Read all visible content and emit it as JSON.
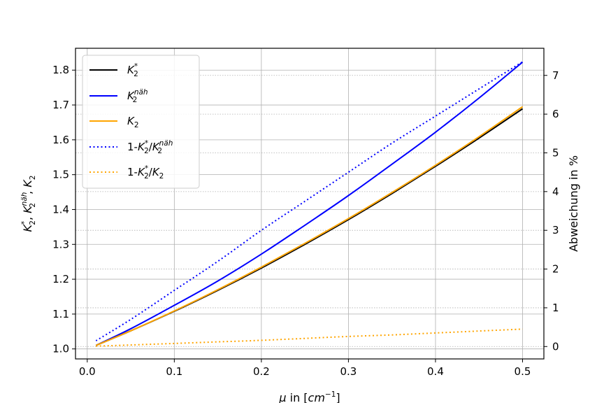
{
  "chart_data": {
    "type": "line",
    "xlabel_parts": {
      "mu": "μ",
      "text": " in [",
      "cm": "cm",
      "sup": "−1",
      "close": "]"
    },
    "ylabel_left_parts": {
      "k": "K",
      "sub": "2",
      "star": "*",
      "sep": ", ",
      "naeh": "näh"
    },
    "ylabel_right": "Abweichung in %",
    "xlim": [
      -0.0135,
      0.5245
    ],
    "ylim_left": [
      0.9713,
      1.8627
    ],
    "ylim_right": [
      -0.32,
      7.7
    ],
    "xticks": [
      0.0,
      0.1,
      0.2,
      0.3,
      0.4,
      0.5
    ],
    "xtick_labels": [
      "0.0",
      "0.1",
      "0.2",
      "0.3",
      "0.4",
      "0.5"
    ],
    "yticks_left": [
      1.0,
      1.1,
      1.2,
      1.3,
      1.4,
      1.5,
      1.6,
      1.7,
      1.8
    ],
    "ytick_labels_left": [
      "1.0",
      "1.1",
      "1.2",
      "1.3",
      "1.4",
      "1.5",
      "1.6",
      "1.7",
      "1.8"
    ],
    "yticks_right": [
      0,
      1,
      2,
      3,
      4,
      5,
      6,
      7
    ],
    "ytick_labels_right": [
      "0",
      "1",
      "2",
      "3",
      "4",
      "5",
      "6",
      "7"
    ],
    "grid": true,
    "legend_position": "top-left",
    "x": [
      0.01,
      0.05,
      0.1,
      0.15,
      0.2,
      0.25,
      0.3,
      0.35,
      0.4,
      0.45,
      0.5
    ],
    "series": [
      {
        "legend": "K2*",
        "axis": "left",
        "style": "solid",
        "color": "#000000",
        "values": [
          1.01,
          1.052,
          1.108,
          1.168,
          1.232,
          1.3,
          1.371,
          1.446,
          1.524,
          1.605,
          1.689
        ]
      },
      {
        "legend": "K2näh",
        "axis": "left",
        "style": "solid",
        "color": "#0000ff",
        "values": [
          1.01,
          1.058,
          1.125,
          1.195,
          1.272,
          1.355,
          1.44,
          1.53,
          1.622,
          1.72,
          1.823
        ]
      },
      {
        "legend": "K2",
        "axis": "left",
        "style": "solid",
        "color": "#ffa500",
        "values": [
          1.01,
          1.052,
          1.109,
          1.17,
          1.235,
          1.303,
          1.374,
          1.449,
          1.527,
          1.609,
          1.695
        ]
      },
      {
        "legend": "1-K2*/K2näh",
        "axis": "right",
        "style": "dotted",
        "color": "#0000ff",
        "values": [
          0.15,
          0.7,
          1.45,
          2.2,
          3.0,
          3.75,
          4.5,
          5.25,
          5.95,
          6.65,
          7.35
        ]
      },
      {
        "legend": "1-K2*/K2",
        "axis": "right",
        "style": "dotted",
        "color": "#ffa500",
        "values": [
          0.01,
          0.04,
          0.08,
          0.12,
          0.16,
          0.21,
          0.26,
          0.3,
          0.35,
          0.4,
          0.45
        ]
      }
    ],
    "legend_parts": {
      "k": "K",
      "sub": "2",
      "star": "*",
      "naeh": "näh",
      "one_minus": "1-",
      "slash": "/"
    }
  }
}
